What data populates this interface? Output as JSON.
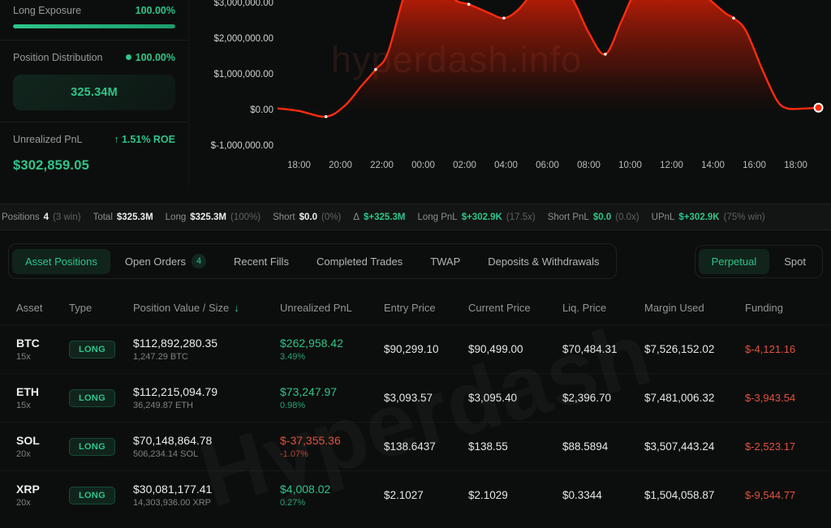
{
  "colors": {
    "green": "#2ec58a",
    "red": "#e2513d",
    "chart_line": "#ff2c0e"
  },
  "sidebar": {
    "long_exposure": {
      "label": "Long Exposure",
      "value": "100.00%",
      "percent": 100
    },
    "position_distribution": {
      "label": "Position Distribution",
      "value": "100.00%",
      "total": "325.34M"
    },
    "unrealized_pnl": {
      "label": "Unrealized PnL",
      "arrow": "↑",
      "roe": "1.51% ROE",
      "value": "$302,859.05"
    }
  },
  "chart": {
    "watermark": "hyperdash.info",
    "chart_data": {
      "type": "area",
      "title": "",
      "xlabel": "",
      "ylabel": "",
      "x_unit": "hours from 17:00",
      "line_color": "#ff2c0e",
      "grid": false,
      "legend": false,
      "ylim_visible": [
        -1140000,
        3070000
      ],
      "y_ticks": [
        {
          "value": 3000000,
          "label": "$3,000,000.00"
        },
        {
          "value": 2000000,
          "label": "$2,000,000.00"
        },
        {
          "value": 1000000,
          "label": "$1,000,000.00"
        },
        {
          "value": 0,
          "label": "$0.00"
        },
        {
          "value": -1000000,
          "label": "$-1,000,000.00"
        }
      ],
      "x_ticks": [
        {
          "t": 1,
          "label": "18:00"
        },
        {
          "t": 3,
          "label": "20:00"
        },
        {
          "t": 5,
          "label": "22:00"
        },
        {
          "t": 7,
          "label": "00:00"
        },
        {
          "t": 9,
          "label": "02:00"
        },
        {
          "t": 11,
          "label": "04:00"
        },
        {
          "t": 13,
          "label": "06:00"
        },
        {
          "t": 15,
          "label": "08:00"
        },
        {
          "t": 17,
          "label": "10:00"
        },
        {
          "t": 19,
          "label": "12:00"
        },
        {
          "t": 21,
          "label": "14:00"
        },
        {
          "t": 23,
          "label": "16:00"
        },
        {
          "t": 25,
          "label": "18:00"
        }
      ],
      "points": [
        [
          0,
          30000
        ],
        [
          1,
          -40000
        ],
        [
          2.3,
          -200000
        ],
        [
          3.2,
          100000
        ],
        [
          4,
          650000
        ],
        [
          4.7,
          1120000
        ],
        [
          5.3,
          1600000
        ],
        [
          6.2,
          3400000
        ],
        [
          7,
          3950000
        ],
        [
          7.9,
          3500000
        ],
        [
          8.6,
          3050000
        ],
        [
          9.2,
          2950000
        ],
        [
          10.2,
          2700000
        ],
        [
          10.9,
          2560000
        ],
        [
          11.6,
          2800000
        ],
        [
          12.5,
          3400000
        ],
        [
          13.3,
          3550000
        ],
        [
          14.2,
          3100000
        ],
        [
          15,
          2150000
        ],
        [
          15.8,
          1550000
        ],
        [
          16.6,
          2500000
        ],
        [
          17.3,
          3300000
        ],
        [
          18.5,
          3650000
        ],
        [
          19.8,
          3600000
        ],
        [
          20.8,
          3100000
        ],
        [
          21.6,
          2700000
        ],
        [
          22,
          2560000
        ],
        [
          22.6,
          2200000
        ],
        [
          23.4,
          1100000
        ],
        [
          24.1,
          250000
        ],
        [
          24.6,
          30000
        ],
        [
          25.3,
          25000
        ],
        [
          26.1,
          50000
        ]
      ],
      "marker_indices": [
        2,
        5,
        11,
        13,
        19,
        26
      ],
      "end_marker_index": 32
    }
  },
  "stats_bar": {
    "items": [
      {
        "label": "Positions",
        "value": "4",
        "note": "(3 win)"
      },
      {
        "label": "Total",
        "value": "$325.3M"
      },
      {
        "label": "Long",
        "value": "$325.3M",
        "note": "(100%)"
      },
      {
        "label": "Short",
        "value": "$0.0",
        "note": "(0%)"
      },
      {
        "label": "Δ",
        "value": "$+325.3M",
        "green": true
      },
      {
        "label": "Long PnL",
        "value": "$+302.9K",
        "note": "(17.5x)",
        "green": true
      },
      {
        "label": "Short PnL",
        "value": "$0.0",
        "note": "(0.0x)",
        "green": true
      },
      {
        "label": "UPnL",
        "value": "$+302.9K",
        "note": "(75% win)",
        "green": true
      }
    ]
  },
  "tabs": {
    "left": [
      {
        "label": "Asset Positions",
        "active": true
      },
      {
        "label": "Open Orders",
        "badge": "4"
      },
      {
        "label": "Recent Fills"
      },
      {
        "label": "Completed Trades"
      },
      {
        "label": "TWAP"
      },
      {
        "label": "Deposits & Withdrawals"
      }
    ],
    "right": [
      {
        "label": "Perpetual",
        "active": true
      },
      {
        "label": "Spot"
      }
    ]
  },
  "table": {
    "headers": [
      "Asset",
      "Type",
      "Position Value / Size",
      "Unrealized PnL",
      "Entry Price",
      "Current Price",
      "Liq. Price",
      "Margin Used",
      "Funding"
    ],
    "sort_column": "Position Value / Size",
    "sort_indicator": "↓",
    "rows": [
      {
        "asset": "BTC",
        "leverage": "15x",
        "type": "LONG",
        "value": "$112,892,280.35",
        "size": "1,247.29 BTC",
        "upnl": "$262,958.42",
        "upnl_pct": "3.49%",
        "pnl_positive": true,
        "entry": "$90,299.10",
        "current": "$90,499.00",
        "liq": "$70,484.31",
        "margin": "$7,526,152.02",
        "funding": "$-4,121.16"
      },
      {
        "asset": "ETH",
        "leverage": "15x",
        "type": "LONG",
        "value": "$112,215,094.79",
        "size": "36,249.87 ETH",
        "upnl": "$73,247.97",
        "upnl_pct": "0.98%",
        "pnl_positive": true,
        "entry": "$3,093.57",
        "current": "$3,095.40",
        "liq": "$2,396.70",
        "margin": "$7,481,006.32",
        "funding": "$-3,943.54"
      },
      {
        "asset": "SOL",
        "leverage": "20x",
        "type": "LONG",
        "value": "$70,148,864.78",
        "size": "506,234.14 SOL",
        "upnl": "$-37,355.36",
        "upnl_pct": "-1.07%",
        "pnl_positive": false,
        "entry": "$138.6437",
        "current": "$138.55",
        "liq": "$88.5894",
        "margin": "$3,507,443.24",
        "funding": "$-2,523.17"
      },
      {
        "asset": "XRP",
        "leverage": "20x",
        "type": "LONG",
        "value": "$30,081,177.41",
        "size": "14,303,936.00 XRP",
        "upnl": "$4,008.02",
        "upnl_pct": "0.27%",
        "pnl_positive": true,
        "entry": "$2.1027",
        "current": "$2.1029",
        "liq": "$0.3344",
        "margin": "$1,504,058.87",
        "funding": "$-9,544.77"
      }
    ],
    "watermark": "Hyperdash"
  }
}
